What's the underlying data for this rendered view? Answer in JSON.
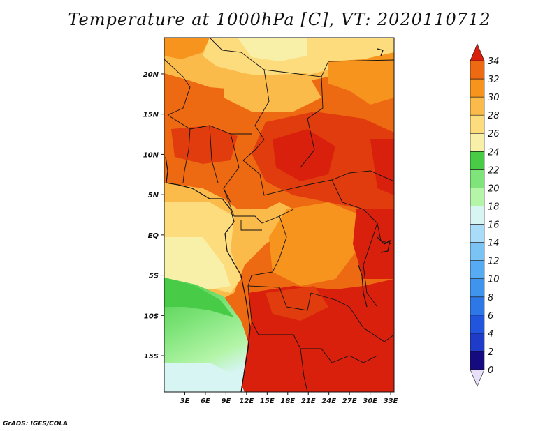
{
  "title": "Temperature at 1000hPa [C], VT: 2020110712",
  "credit": "GrADS: IGES/COLA",
  "map": {
    "lon_range": [
      0,
      33.5
    ],
    "lat_range": [
      -19.5,
      24.5
    ],
    "x_ticks": [
      {
        "value": 3,
        "label": "3E"
      },
      {
        "value": 6,
        "label": "6E"
      },
      {
        "value": 9,
        "label": "9E"
      },
      {
        "value": 12,
        "label": "12E"
      },
      {
        "value": 15,
        "label": "15E"
      },
      {
        "value": 18,
        "label": "18E"
      },
      {
        "value": 21,
        "label": "21E"
      },
      {
        "value": 24,
        "label": "24E"
      },
      {
        "value": 27,
        "label": "27E"
      },
      {
        "value": 30,
        "label": "30E"
      },
      {
        "value": 33,
        "label": "33E"
      }
    ],
    "y_ticks": [
      {
        "value": 20,
        "label": "20N"
      },
      {
        "value": 15,
        "label": "15N"
      },
      {
        "value": 10,
        "label": "10N"
      },
      {
        "value": 5,
        "label": "5N"
      },
      {
        "value": 0,
        "label": "EQ"
      },
      {
        "value": -5,
        "label": "5S"
      },
      {
        "value": -10,
        "label": "10S"
      },
      {
        "value": -15,
        "label": "15S"
      }
    ]
  },
  "colorbar": {
    "levels": [
      "0",
      "2",
      "4",
      "6",
      "8",
      "10",
      "12",
      "14",
      "16",
      "18",
      "20",
      "22",
      "24",
      "26",
      "28",
      "30",
      "32",
      "34"
    ],
    "colors": [
      "#160a80",
      "#1f3cc8",
      "#2255dd",
      "#2d78e6",
      "#3f95ee",
      "#57abf3",
      "#7cc3f5",
      "#a9dcf8",
      "#d6f5f3",
      "#b4f5a8",
      "#7fe47a",
      "#48cc47",
      "#f8f0a8",
      "#fcdc7d",
      "#fbbb4a",
      "#f6941e",
      "#ee6a12",
      "#e13c0d",
      "#d8200c"
    ],
    "under_color": "#e8e0f8"
  }
}
